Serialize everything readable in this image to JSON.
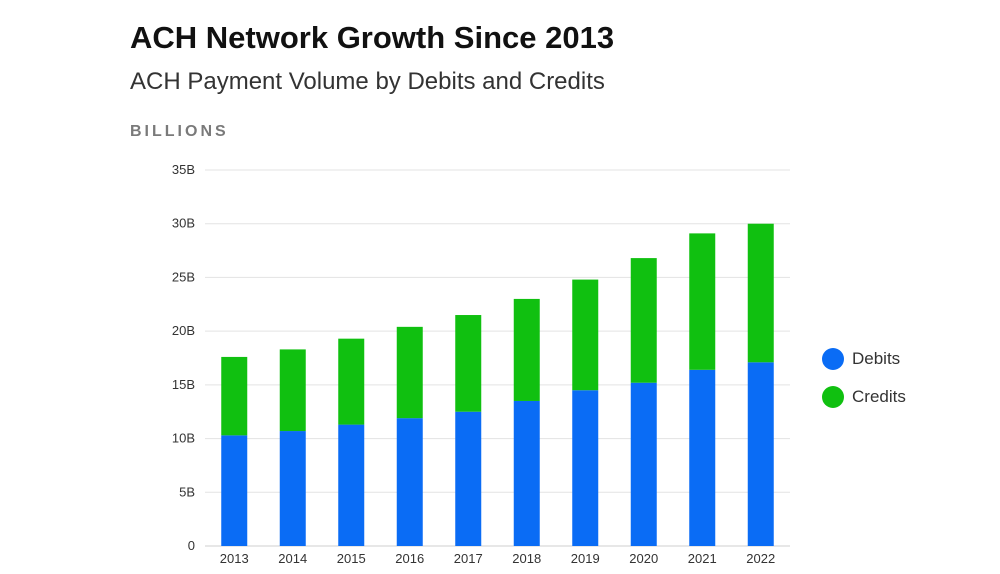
{
  "chart_data": {
    "type": "bar",
    "stacked": true,
    "title": "ACH Network Growth Since 2013",
    "subtitle": "ACH Payment Volume by Debits and Credits",
    "unit_label": "BILLIONS",
    "categories": [
      "2013",
      "2014",
      "2015",
      "2016",
      "2017",
      "2018",
      "2019",
      "2020",
      "2021",
      "2022"
    ],
    "series": [
      {
        "name": "Debits",
        "color": "#0a6cf5",
        "values": [
          10.3,
          10.7,
          11.3,
          11.9,
          12.5,
          13.5,
          14.5,
          15.2,
          16.4,
          17.1
        ]
      },
      {
        "name": "Credits",
        "color": "#10c010",
        "values": [
          7.3,
          7.6,
          8.0,
          8.5,
          9.0,
          9.5,
          10.3,
          11.6,
          12.7,
          12.9
        ]
      }
    ],
    "ylim": [
      0,
      35
    ],
    "yticks": [
      {
        "value": 0,
        "label": "0"
      },
      {
        "value": 5,
        "label": "5B"
      },
      {
        "value": 10,
        "label": "10B"
      },
      {
        "value": 15,
        "label": "15B"
      },
      {
        "value": 20,
        "label": "20B"
      },
      {
        "value": 25,
        "label": "25B"
      },
      {
        "value": 30,
        "label": "30B"
      },
      {
        "value": 35,
        "label": "35B"
      }
    ],
    "grid": true,
    "legend_position": "right"
  },
  "legend": {
    "items": [
      {
        "label": "Debits",
        "color": "#0a6cf5"
      },
      {
        "label": "Credits",
        "color": "#10c010"
      }
    ]
  }
}
